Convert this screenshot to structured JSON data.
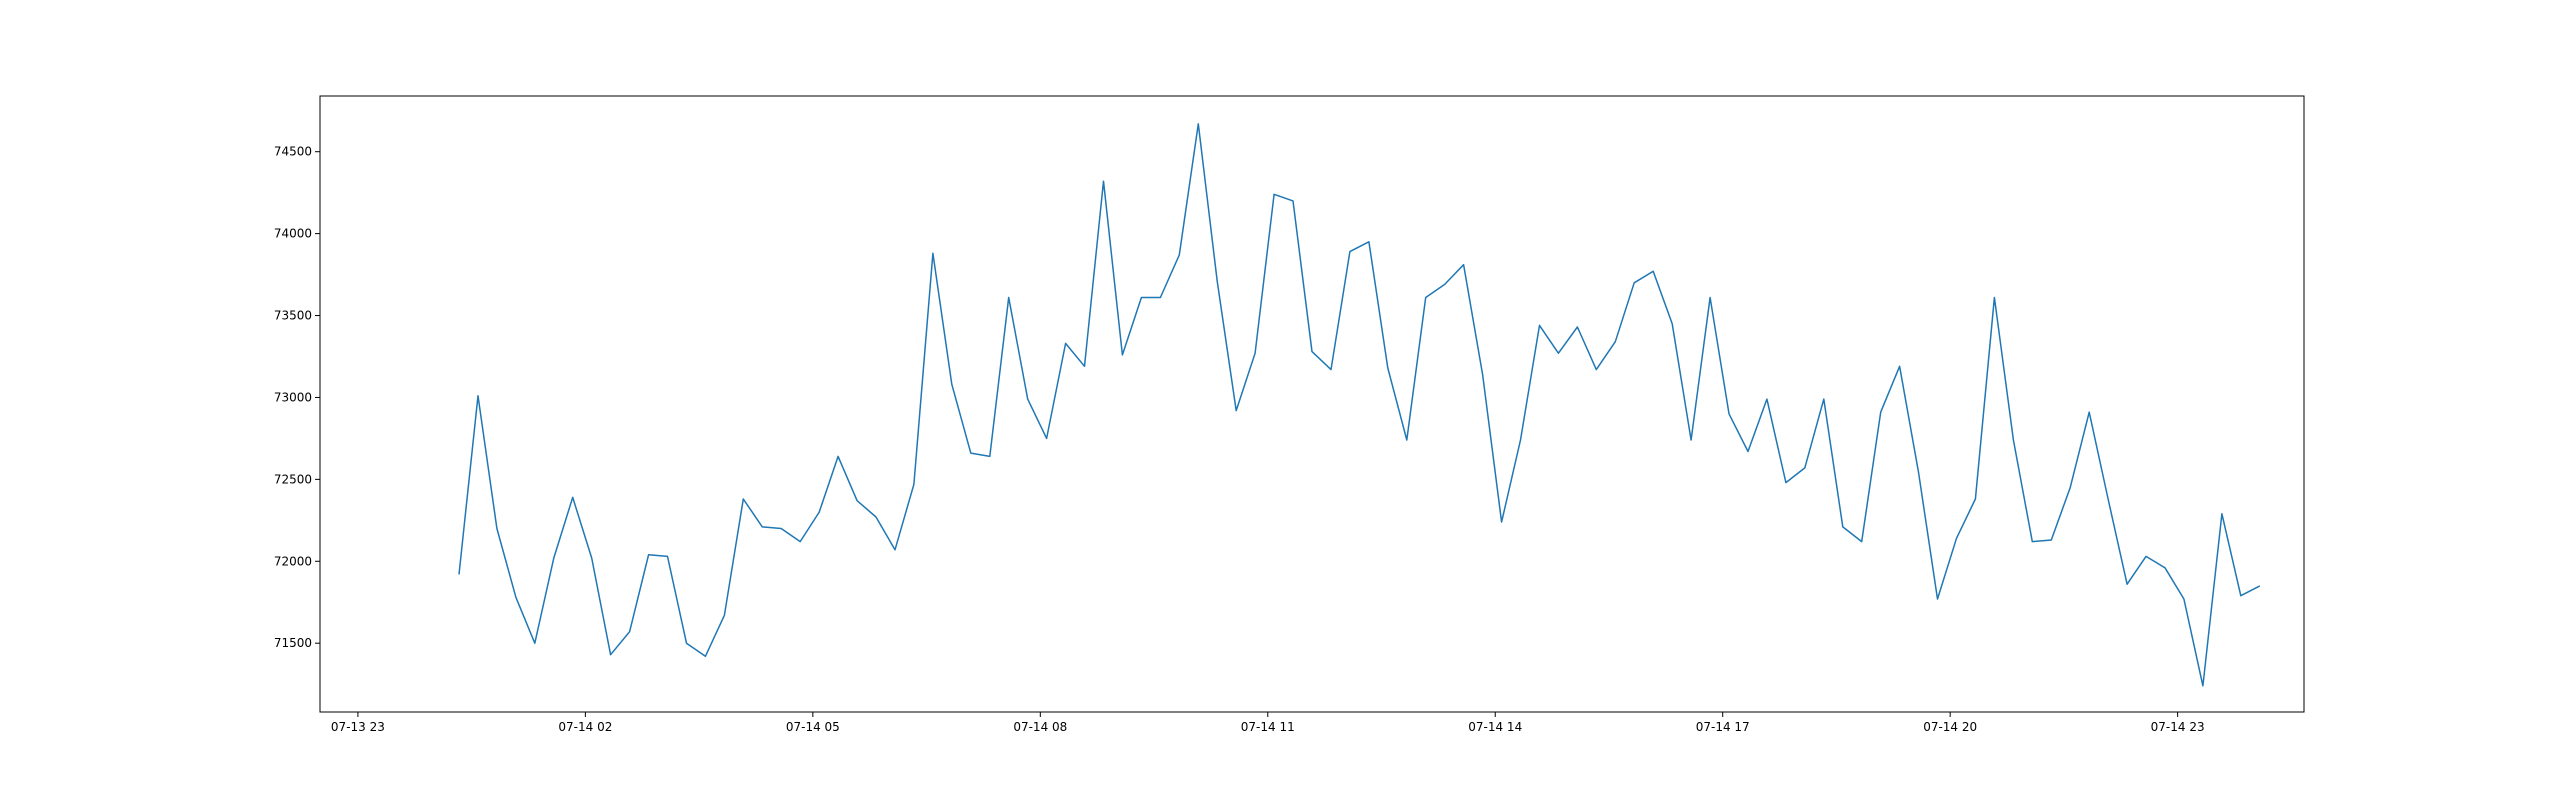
{
  "chart_data": {
    "type": "line",
    "title": "",
    "xlabel": "",
    "ylabel": "",
    "line_color": "#1f77b4",
    "grid": false,
    "legend": "none",
    "x_start": "2024-07-14 00:20",
    "x_step_minutes": 15,
    "xlim": [
      "2024-07-13 22:30",
      "2024-07-15 00:40"
    ],
    "ylim": [
      71080,
      74840
    ],
    "x_ticks": [
      {
        "label": "07-13 23",
        "value": "2024-07-13 23:00"
      },
      {
        "label": "07-14 02",
        "value": "2024-07-14 02:00"
      },
      {
        "label": "07-14 05",
        "value": "2024-07-14 05:00"
      },
      {
        "label": "07-14 08",
        "value": "2024-07-14 08:00"
      },
      {
        "label": "07-14 11",
        "value": "2024-07-14 11:00"
      },
      {
        "label": "07-14 14",
        "value": "2024-07-14 14:00"
      },
      {
        "label": "07-14 17",
        "value": "2024-07-14 17:00"
      },
      {
        "label": "07-14 20",
        "value": "2024-07-14 20:00"
      },
      {
        "label": "07-14 23",
        "value": "2024-07-14 23:00"
      }
    ],
    "y_ticks": [
      {
        "label": "71500",
        "value": 71500
      },
      {
        "label": "72000",
        "value": 72000
      },
      {
        "label": "72500",
        "value": 72500
      },
      {
        "label": "73000",
        "value": 73000
      },
      {
        "label": "73500",
        "value": 73500
      },
      {
        "label": "74000",
        "value": 74000
      },
      {
        "label": "74500",
        "value": 74500
      }
    ],
    "series": [
      {
        "values": [
          71920,
          73010,
          72200,
          71780,
          71500,
          72020,
          72390,
          72020,
          71430,
          71570,
          72040,
          72030,
          71500,
          71420,
          71670,
          72380,
          72210,
          72200,
          72120,
          72300,
          72640,
          72370,
          72270,
          72070,
          72470,
          73880,
          73080,
          72660,
          72640,
          73610,
          72990,
          72750,
          73330,
          73190,
          74320,
          73260,
          73610,
          73610,
          73870,
          74670,
          73710,
          72920,
          73270,
          74240,
          74200,
          73280,
          73170,
          73890,
          73950,
          73180,
          72740,
          73610,
          73690,
          73810,
          73140,
          72240,
          72740,
          73440,
          73270,
          73430,
          73170,
          73340,
          73700,
          73770,
          73450,
          72740,
          73610,
          72900,
          72670,
          72990,
          72480,
          72570,
          72990,
          72210,
          72120,
          72910,
          73190,
          72540,
          71770,
          72140,
          72380,
          73610,
          72740,
          72120,
          72130,
          72450,
          72910,
          72380,
          71860,
          72030,
          71960,
          71770,
          71240,
          72290,
          71790,
          71850
        ]
      }
    ]
  }
}
